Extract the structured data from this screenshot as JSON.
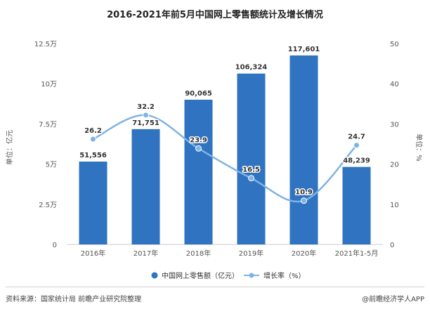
{
  "chart_data": {
    "type": "bar",
    "title": "2016-2021年前5月中国网上零售额统计及增长情况",
    "categories": [
      "2016年",
      "2017年",
      "2018年",
      "2019年",
      "2020年",
      "2021年1-5月"
    ],
    "series": [
      {
        "name": "中国网上零售额（亿元）",
        "type": "bar",
        "axis": "left",
        "values": [
          51556,
          71751,
          90065,
          106324,
          117601,
          48239
        ],
        "labels": [
          "51,556",
          "71,751",
          "90,065",
          "106,324",
          "117,601",
          "48,239"
        ]
      },
      {
        "name": "增长率（%）",
        "type": "line",
        "axis": "right",
        "values": [
          26.2,
          32.2,
          23.9,
          16.5,
          10.9,
          24.7
        ],
        "labels": [
          "26.2",
          "32.2",
          "23.9",
          "16.5",
          "10.9",
          "24.7"
        ]
      }
    ],
    "ylabel": "单位：亿元",
    "y2label": "单位：%",
    "ylim": [
      0,
      125000
    ],
    "y2lim": [
      0,
      50
    ],
    "yticks": [
      "0",
      "2.5万",
      "5万",
      "7.5万",
      "10万",
      "12.5万"
    ],
    "y2ticks": [
      "0",
      "10",
      "20",
      "30",
      "40",
      "50"
    ],
    "legend_position": "bottom",
    "grid": false
  },
  "colors": {
    "bar": "#2f73c1",
    "line": "#7fb3e3"
  },
  "footer": {
    "source": "资料来源：国家统计局 前瞻产业研究院整理",
    "brand": "@前瞻经济学人APP"
  }
}
